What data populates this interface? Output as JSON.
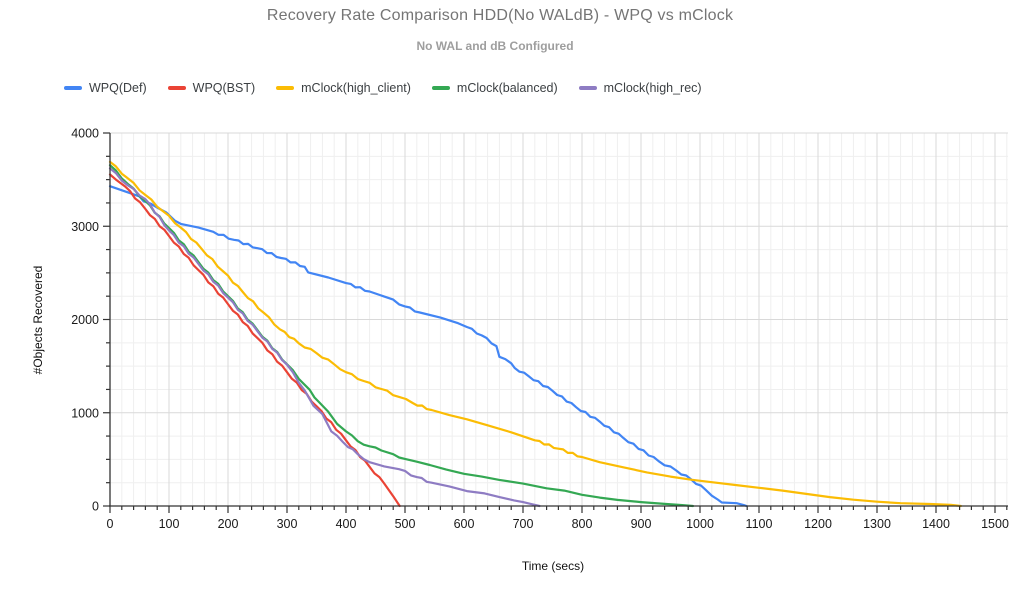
{
  "title": "Recovery Rate Comparison HDD(No WALdB) - WPQ vs mClock",
  "subtitle": "No WAL and dB Configured",
  "axes": {
    "x_title": "Time (secs)",
    "y_title": "#Objects Recovered"
  },
  "colors": {
    "title_text": "#757575",
    "subtitle_text": "#9e9e9e",
    "axis_line": "#333333",
    "tick_label": "#1a1a1a",
    "grid_major": "#d9d9d9",
    "grid_minor": "#efefef"
  },
  "chart_data": {
    "type": "line",
    "title": "Recovery Rate Comparison HDD(No WALdB) - WPQ vs mClock",
    "subtitle": "No WAL and dB Configured",
    "xlabel": "Time (secs)",
    "ylabel": "#Objects Recovered",
    "xlim": [
      0,
      1500
    ],
    "ylim": [
      0,
      4000
    ],
    "x_ticks": [
      0,
      100,
      200,
      300,
      400,
      500,
      600,
      700,
      800,
      900,
      1000,
      1100,
      1200,
      1300,
      1400,
      1500
    ],
    "y_ticks": [
      0,
      1000,
      2000,
      3000,
      4000
    ],
    "x_minor_step": 20,
    "y_minor_step": 250,
    "grid": "major+minor",
    "legend_position": "top-left",
    "series": [
      {
        "name": "WPQ(Def)",
        "color": "#4285F4",
        "points": [
          [
            0,
            3430
          ],
          [
            25,
            3375
          ],
          [
            50,
            3320
          ],
          [
            57,
            3268
          ],
          [
            80,
            3200
          ],
          [
            95,
            3150
          ],
          [
            110,
            3060
          ],
          [
            120,
            3025
          ],
          [
            150,
            2985
          ],
          [
            175,
            2940
          ],
          [
            210,
            2855
          ],
          [
            250,
            2765
          ],
          [
            290,
            2660
          ],
          [
            330,
            2565
          ],
          [
            336,
            2505
          ],
          [
            370,
            2450
          ],
          [
            400,
            2390
          ],
          [
            440,
            2300
          ],
          [
            470,
            2235
          ],
          [
            500,
            2140
          ],
          [
            525,
            2075
          ],
          [
            560,
            2020
          ],
          [
            590,
            1960
          ],
          [
            605,
            1920
          ],
          [
            630,
            1830
          ],
          [
            655,
            1715
          ],
          [
            660,
            1600
          ],
          [
            680,
            1530
          ],
          [
            686,
            1480
          ],
          [
            710,
            1390
          ],
          [
            750,
            1235
          ],
          [
            790,
            1060
          ],
          [
            830,
            905
          ],
          [
            870,
            730
          ],
          [
            930,
            480
          ],
          [
            960,
            380
          ],
          [
            985,
            285
          ],
          [
            1010,
            170
          ],
          [
            1030,
            70
          ],
          [
            1037,
            38
          ],
          [
            1062,
            30
          ],
          [
            1074,
            10
          ],
          [
            1079,
            0
          ]
        ]
      },
      {
        "name": "WPQ(BST)",
        "color": "#EA4335",
        "points": [
          [
            0,
            3555
          ],
          [
            10,
            3500
          ],
          [
            25,
            3430
          ],
          [
            60,
            3185
          ],
          [
            100,
            2895
          ],
          [
            150,
            2530
          ],
          [
            200,
            2165
          ],
          [
            250,
            1800
          ],
          [
            300,
            1435
          ],
          [
            350,
            1070
          ],
          [
            400,
            705
          ],
          [
            440,
            420
          ],
          [
            465,
            240
          ],
          [
            480,
            105
          ],
          [
            491,
            0
          ]
        ]
      },
      {
        "name": "mClock(high_client)",
        "color": "#FBBC04",
        "points": [
          [
            0,
            3690
          ],
          [
            30,
            3515
          ],
          [
            60,
            3335
          ],
          [
            90,
            3160
          ],
          [
            120,
            2985
          ],
          [
            155,
            2760
          ],
          [
            192,
            2515
          ],
          [
            225,
            2295
          ],
          [
            260,
            2075
          ],
          [
            288,
            1895
          ],
          [
            320,
            1745
          ],
          [
            350,
            1640
          ],
          [
            380,
            1520
          ],
          [
            400,
            1435
          ],
          [
            430,
            1340
          ],
          [
            460,
            1255
          ],
          [
            490,
            1170
          ],
          [
            513,
            1105
          ],
          [
            545,
            1030
          ],
          [
            575,
            975
          ],
          [
            605,
            930
          ],
          [
            640,
            865
          ],
          [
            680,
            790
          ],
          [
            720,
            705
          ],
          [
            760,
            615
          ],
          [
            800,
            525
          ],
          [
            830,
            470
          ],
          [
            870,
            415
          ],
          [
            910,
            360
          ],
          [
            950,
            315
          ],
          [
            985,
            282
          ],
          [
            1020,
            255
          ],
          [
            1060,
            225
          ],
          [
            1100,
            195
          ],
          [
            1140,
            165
          ],
          [
            1180,
            130
          ],
          [
            1220,
            95
          ],
          [
            1260,
            68
          ],
          [
            1300,
            46
          ],
          [
            1340,
            30
          ],
          [
            1390,
            21
          ],
          [
            1425,
            12
          ],
          [
            1442,
            0
          ]
        ]
      },
      {
        "name": "mClock(balanced)",
        "color": "#34A853",
        "points": [
          [
            0,
            3655
          ],
          [
            30,
            3455
          ],
          [
            60,
            3270
          ],
          [
            100,
            2980
          ],
          [
            150,
            2615
          ],
          [
            200,
            2250
          ],
          [
            250,
            1885
          ],
          [
            300,
            1520
          ],
          [
            330,
            1300
          ],
          [
            355,
            1110
          ],
          [
            370,
            1010
          ],
          [
            385,
            880
          ],
          [
            400,
            800
          ],
          [
            420,
            695
          ],
          [
            440,
            640
          ],
          [
            460,
            595
          ],
          [
            480,
            555
          ],
          [
            500,
            505
          ],
          [
            520,
            475
          ],
          [
            542,
            440
          ],
          [
            570,
            390
          ],
          [
            600,
            345
          ],
          [
            630,
            315
          ],
          [
            660,
            280
          ],
          [
            700,
            240
          ],
          [
            740,
            190
          ],
          [
            770,
            165
          ],
          [
            800,
            120
          ],
          [
            830,
            90
          ],
          [
            860,
            65
          ],
          [
            900,
            42
          ],
          [
            940,
            22
          ],
          [
            970,
            10
          ],
          [
            988,
            0
          ]
        ]
      },
      {
        "name": "mClock(high_rec)",
        "color": "#8E7CC3",
        "points": [
          [
            0,
            3620
          ],
          [
            30,
            3440
          ],
          [
            60,
            3290
          ],
          [
            100,
            2955
          ],
          [
            150,
            2595
          ],
          [
            200,
            2235
          ],
          [
            250,
            1875
          ],
          [
            300,
            1515
          ],
          [
            330,
            1240
          ],
          [
            345,
            1075
          ],
          [
            360,
            985
          ],
          [
            375,
            800
          ],
          [
            395,
            685
          ],
          [
            420,
            555
          ],
          [
            440,
            470
          ],
          [
            465,
            425
          ],
          [
            490,
            395
          ],
          [
            520,
            310
          ],
          [
            545,
            250
          ],
          [
            575,
            210
          ],
          [
            605,
            160
          ],
          [
            635,
            135
          ],
          [
            660,
            95
          ],
          [
            685,
            60
          ],
          [
            700,
            42
          ],
          [
            714,
            20
          ],
          [
            728,
            0
          ]
        ]
      }
    ]
  }
}
